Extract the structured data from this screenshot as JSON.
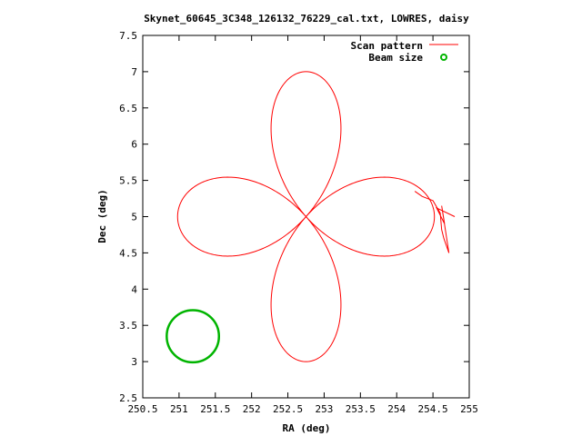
{
  "chart_data": {
    "type": "line",
    "title": "Skynet_60645_3C348_126132_76229_cal.txt, LOWRES, daisy",
    "xlabel": "RA (deg)",
    "ylabel": "Dec (deg)",
    "xlim": [
      250.5,
      255
    ],
    "ylim": [
      2.5,
      7.5
    ],
    "x_ticks": [
      "250.5",
      "251",
      "251.5",
      "252",
      "252.5",
      "253",
      "253.5",
      "254",
      "254.5",
      "255"
    ],
    "y_ticks": [
      "2.5",
      "3",
      "3.5",
      "4",
      "4.5",
      "5",
      "5.5",
      "6",
      "6.5",
      "7",
      "7.5"
    ],
    "grid": false,
    "legend_position": "top-right",
    "series": [
      {
        "name": "Scan pattern",
        "color": "#ff0000",
        "kind": "daisy",
        "center": [
          252.75,
          5.0
        ],
        "petal_radius": 2.0,
        "x_scale": 0.885,
        "petals": 4,
        "petal_tips": [
          {
            "ra": 252.75,
            "dec": 7.0
          },
          {
            "ra": 254.53,
            "dec": 5.0
          },
          {
            "ra": 252.75,
            "dec": 3.0
          },
          {
            "ra": 250.97,
            "dec": 5.0
          }
        ],
        "slew_segment": [
          [
            254.25,
            5.35
          ],
          [
            254.35,
            5.28
          ],
          [
            254.5,
            5.22
          ],
          [
            254.6,
            5.05
          ],
          [
            254.62,
            4.82
          ],
          [
            254.65,
            4.7
          ],
          [
            254.72,
            4.5
          ],
          [
            254.62,
            5.15
          ],
          [
            254.66,
            4.9
          ],
          [
            254.55,
            5.12
          ],
          [
            254.8,
            5.0
          ]
        ]
      },
      {
        "name": "Beam size",
        "color": "#00b400",
        "kind": "circle",
        "center": [
          251.19,
          3.35
        ],
        "radius_dec": 0.36
      }
    ]
  }
}
